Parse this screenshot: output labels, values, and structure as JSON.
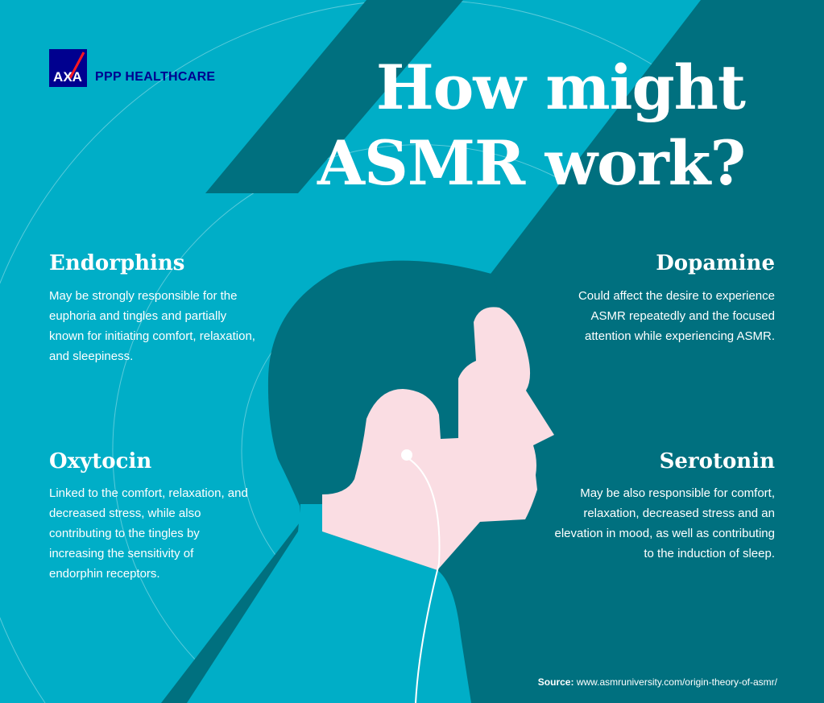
{
  "brand": {
    "logo_text": "AXA",
    "name": "PPP HEALTHCARE"
  },
  "title": {
    "line1": "How might",
    "line2": "ASMR work?"
  },
  "sections": [
    {
      "heading": "Endorphins",
      "text": "May be strongly responsible for the euphoria and tingles and partially known for initiating comfort, relaxation, and sleepiness."
    },
    {
      "heading": "Dopamine",
      "text": "Could affect the desire to experience ASMR repeatedly and the focused attention while experiencing ASMR."
    },
    {
      "heading": "Oxytocin",
      "text": "Linked to the comfort, relaxation, and decreased stress, while also contributing to the tingles by increasing the sensitivity of endorphin receptors."
    },
    {
      "heading": "Serotonin",
      "text": "May be also responsible for comfort, relaxation, decreased stress and an elevation in mood, as well as contributing to the induction of sleep."
    }
  ],
  "source": {
    "label": "Source:",
    "url": "www.asmruniversity.com/origin-theory-of-asmr/"
  },
  "colors": {
    "light": "#00aec7",
    "dark": "#00707f",
    "skin": "#fadde3",
    "brand": "#00008f",
    "axa_red": "#ff1721"
  }
}
